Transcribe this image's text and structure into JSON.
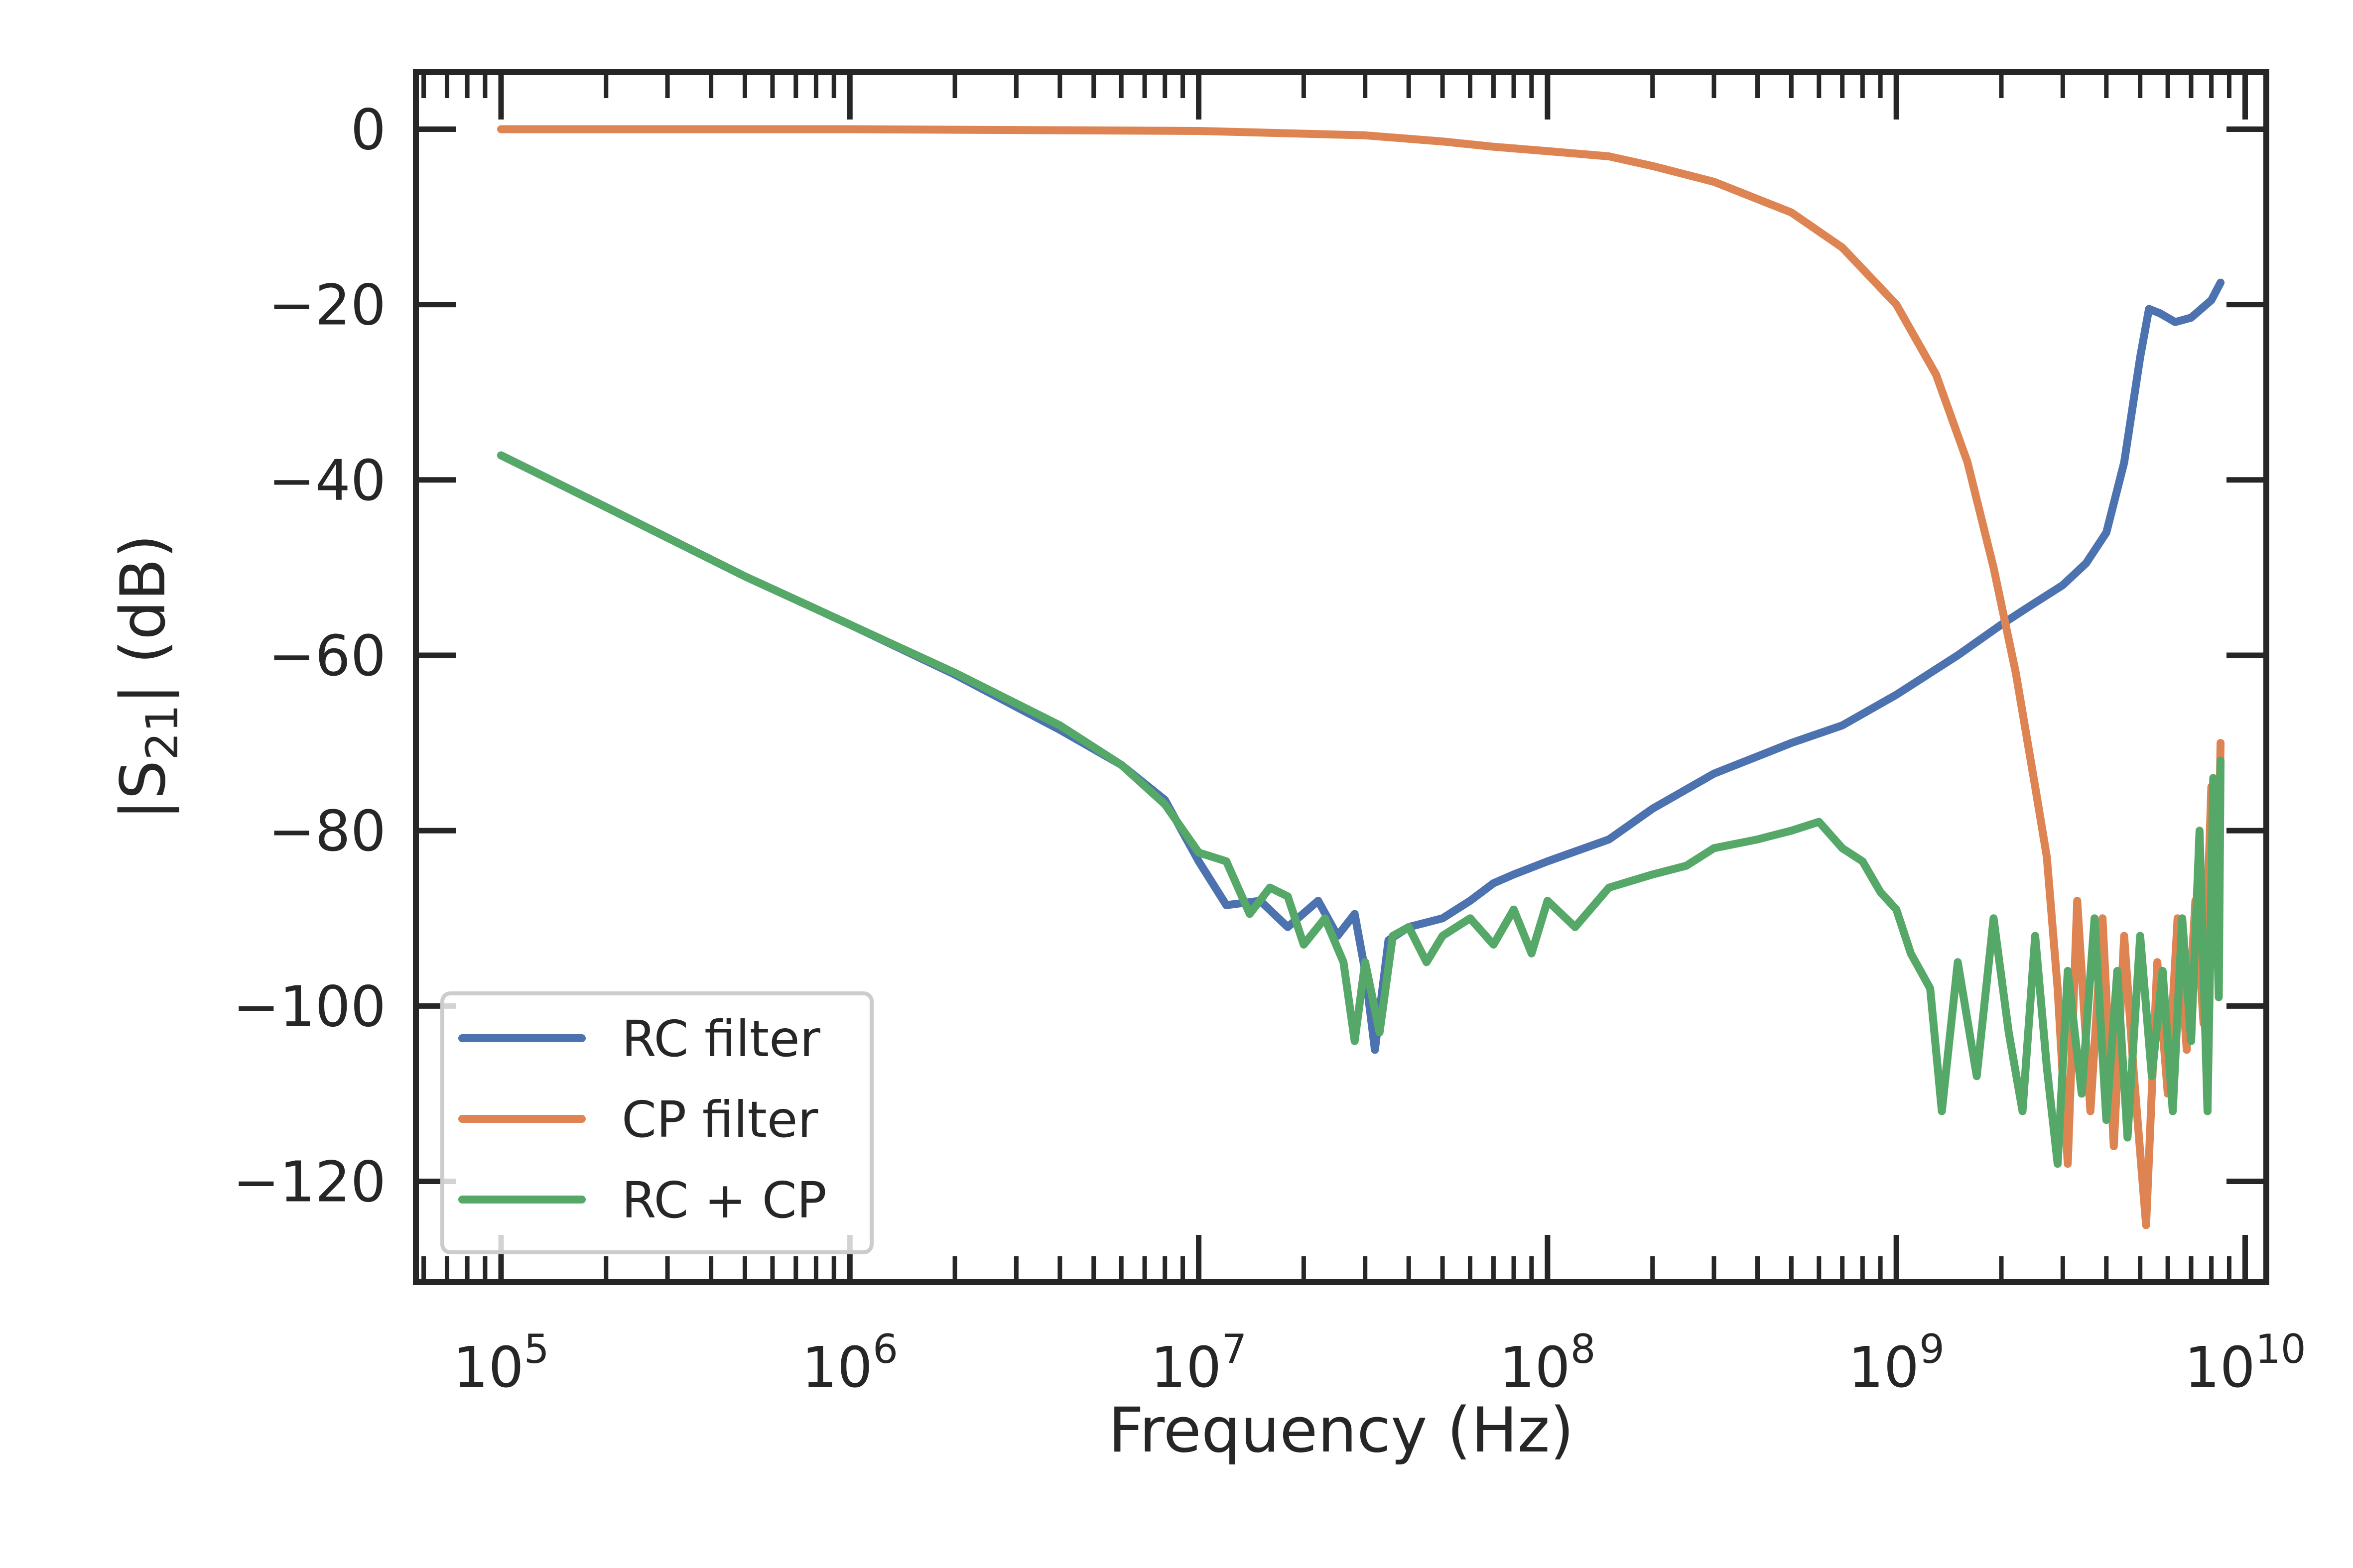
{
  "chart_data": {
    "type": "line",
    "title": "",
    "xlabel": "Frequency (Hz)",
    "ylabel_parts": {
      "prefix": "|S",
      "subscript": "21",
      "suffix": "| (dB)"
    },
    "xscale": "log",
    "xlim": [
      57000,
      11500000000
    ],
    "ylim": [
      -131.5,
      6.5
    ],
    "x_ticks": [
      {
        "value": 100000,
        "base": "10",
        "exp": "5"
      },
      {
        "value": 1000000,
        "base": "10",
        "exp": "6"
      },
      {
        "value": 10000000,
        "base": "10",
        "exp": "7"
      },
      {
        "value": 100000000,
        "base": "10",
        "exp": "8"
      },
      {
        "value": 1000000000,
        "base": "10",
        "exp": "9"
      },
      {
        "value": 10000000000,
        "base": "10",
        "exp": "10"
      }
    ],
    "y_ticks": [
      {
        "value": 0,
        "label": "0"
      },
      {
        "value": -20,
        "label": "−20"
      },
      {
        "value": -40,
        "label": "−40"
      },
      {
        "value": -60,
        "label": "−60"
      },
      {
        "value": -80,
        "label": "−80"
      },
      {
        "value": -100,
        "label": "−100"
      },
      {
        "value": -120,
        "label": "−120"
      }
    ],
    "grid": false,
    "legend": {
      "placement": "lower-left",
      "entries": [
        "RC filter",
        "CP filter",
        "RC + CP"
      ]
    },
    "series": [
      {
        "name": "RC filter",
        "color": "#4c72b0",
        "points": [
          [
            100000,
            -37.2
          ],
          [
            200000,
            -43.1
          ],
          [
            500000,
            -51.0
          ],
          [
            1000000,
            -56.5
          ],
          [
            2000000,
            -62.2
          ],
          [
            4000000,
            -68.5
          ],
          [
            6000000,
            -72.5
          ],
          [
            8000000,
            -76.5
          ],
          [
            10000000,
            -83.5
          ],
          [
            12000000,
            -88.5
          ],
          [
            15000000,
            -88.0
          ],
          [
            18000000,
            -91.0
          ],
          [
            22000000,
            -88.0
          ],
          [
            25000000,
            -92.0
          ],
          [
            28000000,
            -89.5
          ],
          [
            30000000,
            -96.0
          ],
          [
            32000000,
            -105.0
          ],
          [
            35000000,
            -92.5
          ],
          [
            40000000,
            -91.0
          ],
          [
            50000000,
            -90.0
          ],
          [
            60000000,
            -88.0
          ],
          [
            70000000,
            -86.0
          ],
          [
            80000000,
            -85.0
          ],
          [
            100000000,
            -83.5
          ],
          [
            150000000,
            -81.0
          ],
          [
            200000000,
            -77.5
          ],
          [
            300000000,
            -73.5
          ],
          [
            500000000,
            -70.0
          ],
          [
            700000000,
            -68.0
          ],
          [
            1000000000,
            -64.5
          ],
          [
            1500000000,
            -60.0
          ],
          [
            2000000000,
            -56.5
          ],
          [
            2500000000,
            -54.0
          ],
          [
            3000000000,
            -52.0
          ],
          [
            3500000000,
            -49.5
          ],
          [
            4000000000,
            -46.0
          ],
          [
            4500000000,
            -38.0
          ],
          [
            5000000000,
            -26.0
          ],
          [
            5300000000,
            -20.5
          ],
          [
            5700000000,
            -21.0
          ],
          [
            6300000000,
            -22.0
          ],
          [
            7000000000,
            -21.5
          ],
          [
            8000000000,
            -19.5
          ],
          [
            8500000000,
            -17.5
          ]
        ]
      },
      {
        "name": "CP filter",
        "color": "#dd8452",
        "points": [
          [
            100000,
            0.0
          ],
          [
            1000000,
            0.0
          ],
          [
            10000000,
            -0.2
          ],
          [
            30000000,
            -0.7
          ],
          [
            50000000,
            -1.4
          ],
          [
            70000000,
            -2.0
          ],
          [
            100000000,
            -2.5
          ],
          [
            150000000,
            -3.1
          ],
          [
            200000000,
            -4.2
          ],
          [
            300000000,
            -6.0
          ],
          [
            500000000,
            -9.5
          ],
          [
            700000000,
            -13.5
          ],
          [
            1000000000,
            -20.0
          ],
          [
            1300000000,
            -28.0
          ],
          [
            1600000000,
            -38.0
          ],
          [
            1900000000,
            -50.0
          ],
          [
            2200000000,
            -62.0
          ],
          [
            2500000000,
            -75.0
          ],
          [
            2700000000,
            -83.0
          ],
          [
            2900000000,
            -98.0
          ],
          [
            3100000000,
            -118.0
          ],
          [
            3300000000,
            -88.0
          ],
          [
            3600000000,
            -112.0
          ],
          [
            3900000000,
            -90.0
          ],
          [
            4200000000,
            -116.0
          ],
          [
            4500000000,
            -92.0
          ],
          [
            4800000000,
            -108.0
          ],
          [
            5200000000,
            -125.0
          ],
          [
            5600000000,
            -95.0
          ],
          [
            6000000000,
            -110.0
          ],
          [
            6400000000,
            -90.0
          ],
          [
            6800000000,
            -105.0
          ],
          [
            7200000000,
            -88.0
          ],
          [
            7600000000,
            -102.0
          ],
          [
            8000000000,
            -75.0
          ],
          [
            8300000000,
            -95.0
          ],
          [
            8500000000,
            -70.0
          ]
        ]
      },
      {
        "name": "RC + CP",
        "color": "#55a868",
        "points": [
          [
            100000,
            -37.2
          ],
          [
            200000,
            -43.1
          ],
          [
            500000,
            -51.0
          ],
          [
            1000000,
            -56.5
          ],
          [
            2000000,
            -62.0
          ],
          [
            4000000,
            -68.0
          ],
          [
            6000000,
            -72.5
          ],
          [
            8000000,
            -77.0
          ],
          [
            10000000,
            -82.5
          ],
          [
            12000000,
            -83.5
          ],
          [
            14000000,
            -89.5
          ],
          [
            16000000,
            -86.5
          ],
          [
            18000000,
            -87.5
          ],
          [
            20000000,
            -93.0
          ],
          [
            23000000,
            -90.0
          ],
          [
            26000000,
            -95.0
          ],
          [
            28000000,
            -104.0
          ],
          [
            30000000,
            -95.0
          ],
          [
            33000000,
            -103.0
          ],
          [
            36000000,
            -92.0
          ],
          [
            40000000,
            -91.0
          ],
          [
            45000000,
            -95.0
          ],
          [
            50000000,
            -92.0
          ],
          [
            60000000,
            -90.0
          ],
          [
            70000000,
            -93.0
          ],
          [
            80000000,
            -89.0
          ],
          [
            90000000,
            -94.0
          ],
          [
            100000000,
            -88.0
          ],
          [
            120000000,
            -91.0
          ],
          [
            150000000,
            -86.5
          ],
          [
            200000000,
            -85.0
          ],
          [
            250000000,
            -84.0
          ],
          [
            300000000,
            -82.0
          ],
          [
            400000000,
            -81.0
          ],
          [
            500000000,
            -80.0
          ],
          [
            600000000,
            -79.0
          ],
          [
            700000000,
            -82.0
          ],
          [
            800000000,
            -83.5
          ],
          [
            900000000,
            -87.0
          ],
          [
            1000000000,
            -89.0
          ],
          [
            1100000000,
            -94.0
          ],
          [
            1250000000,
            -98.0
          ],
          [
            1350000000,
            -112.0
          ],
          [
            1500000000,
            -95.0
          ],
          [
            1700000000,
            -108.0
          ],
          [
            1900000000,
            -90.0
          ],
          [
            2100000000,
            -103.0
          ],
          [
            2300000000,
            -112.0
          ],
          [
            2500000000,
            -92.0
          ],
          [
            2700000000,
            -107.0
          ],
          [
            2900000000,
            -118.0
          ],
          [
            3100000000,
            -96.0
          ],
          [
            3400000000,
            -110.0
          ],
          [
            3700000000,
            -90.0
          ],
          [
            4000000000,
            -113.0
          ],
          [
            4300000000,
            -96.0
          ],
          [
            4600000000,
            -115.0
          ],
          [
            5000000000,
            -92.0
          ],
          [
            5400000000,
            -108.0
          ],
          [
            5800000000,
            -96.0
          ],
          [
            6200000000,
            -112.0
          ],
          [
            6600000000,
            -90.0
          ],
          [
            7000000000,
            -104.0
          ],
          [
            7400000000,
            -80.0
          ],
          [
            7800000000,
            -112.0
          ],
          [
            8100000000,
            -74.0
          ],
          [
            8400000000,
            -99.0
          ],
          [
            8500000000,
            -72.0
          ]
        ]
      }
    ]
  }
}
